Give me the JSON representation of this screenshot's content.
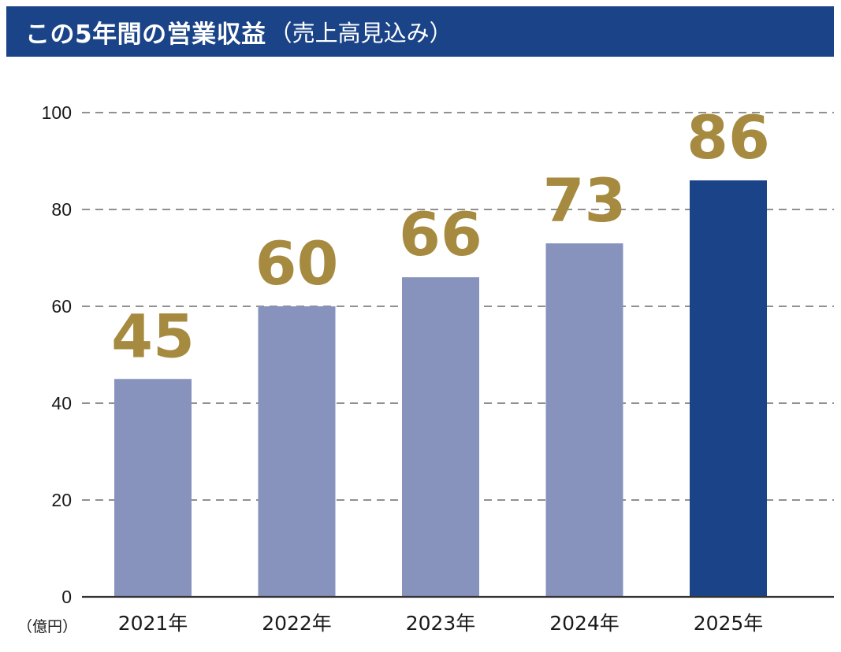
{
  "chart_data": {
    "type": "bar",
    "title": "この5年間の営業収益",
    "subtitle": "（売上高見込み）",
    "unit_label": "（億円）",
    "categories": [
      "2021年",
      "2022年",
      "2023年",
      "2024年",
      "2025年"
    ],
    "values": [
      45,
      60,
      66,
      73,
      86
    ],
    "ylim": [
      0,
      100
    ],
    "yticks": [
      0,
      20,
      40,
      60,
      80,
      100
    ],
    "grid": true,
    "grid_style": "dashed",
    "data_labels": true,
    "colors": {
      "bar": "#8793bd",
      "bar_highlight": "#1b4488",
      "data_label": "#a68a3f",
      "title_bar": "#1b4488"
    },
    "highlight_index": 4
  }
}
